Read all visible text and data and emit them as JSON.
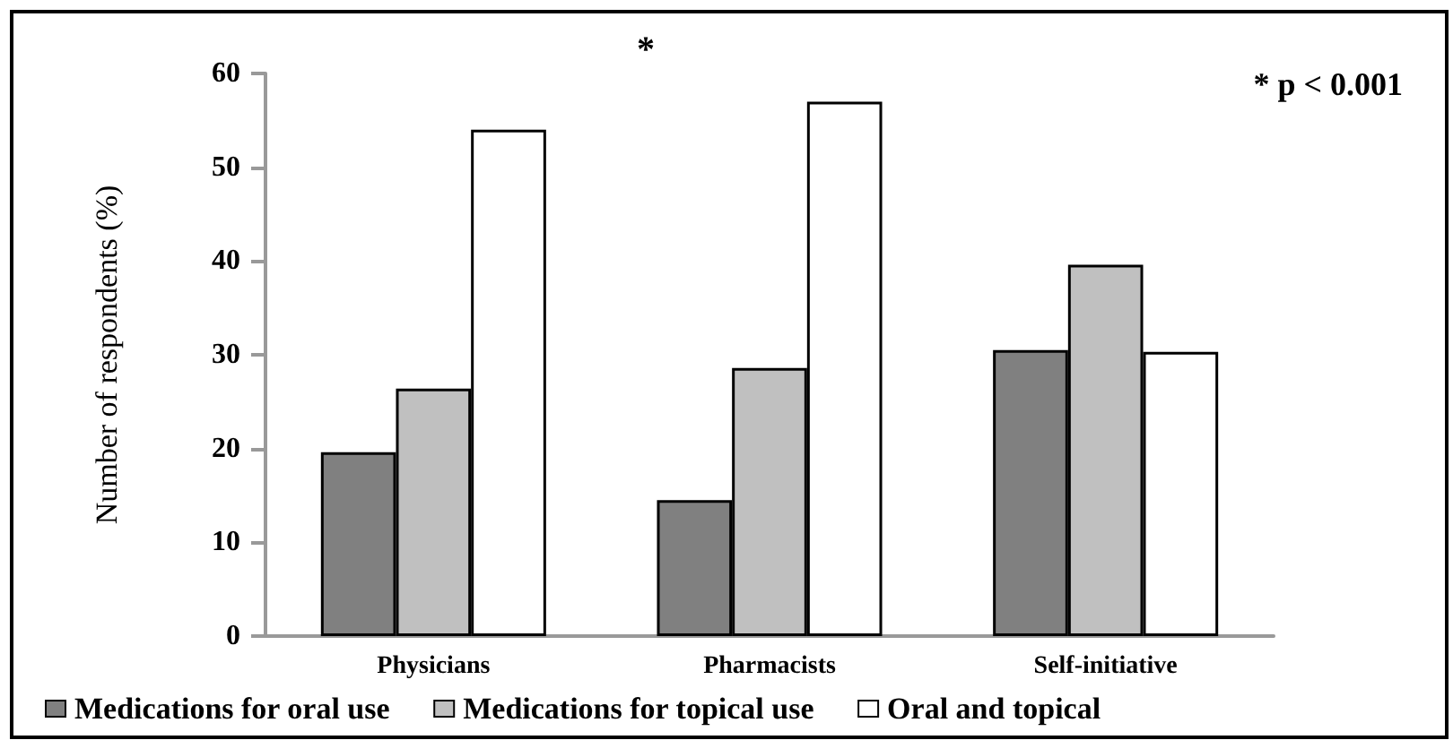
{
  "chart_data": {
    "type": "bar",
    "ylabel": "Number of respondents (%)",
    "categories": [
      "Physicians",
      "Pharmacists",
      "Self-initiative"
    ],
    "series": [
      {
        "name": "Medications for oral use",
        "color": "#808080",
        "values": [
          19.6,
          14.5,
          30.5
        ]
      },
      {
        "name": "Medications for topical use",
        "color": "#c0c0c0",
        "values": [
          26.4,
          28.6,
          39.6
        ]
      },
      {
        "name": "Oral and topical",
        "color": "#ffffff",
        "values": [
          54,
          57,
          30.3
        ]
      }
    ],
    "ylim": [
      0,
      60
    ],
    "yticks": [
      0,
      10,
      20,
      30,
      40,
      50,
      60
    ],
    "grid": false,
    "legend": "bottom",
    "annotations": [
      "*",
      "* p < 0.001"
    ]
  }
}
